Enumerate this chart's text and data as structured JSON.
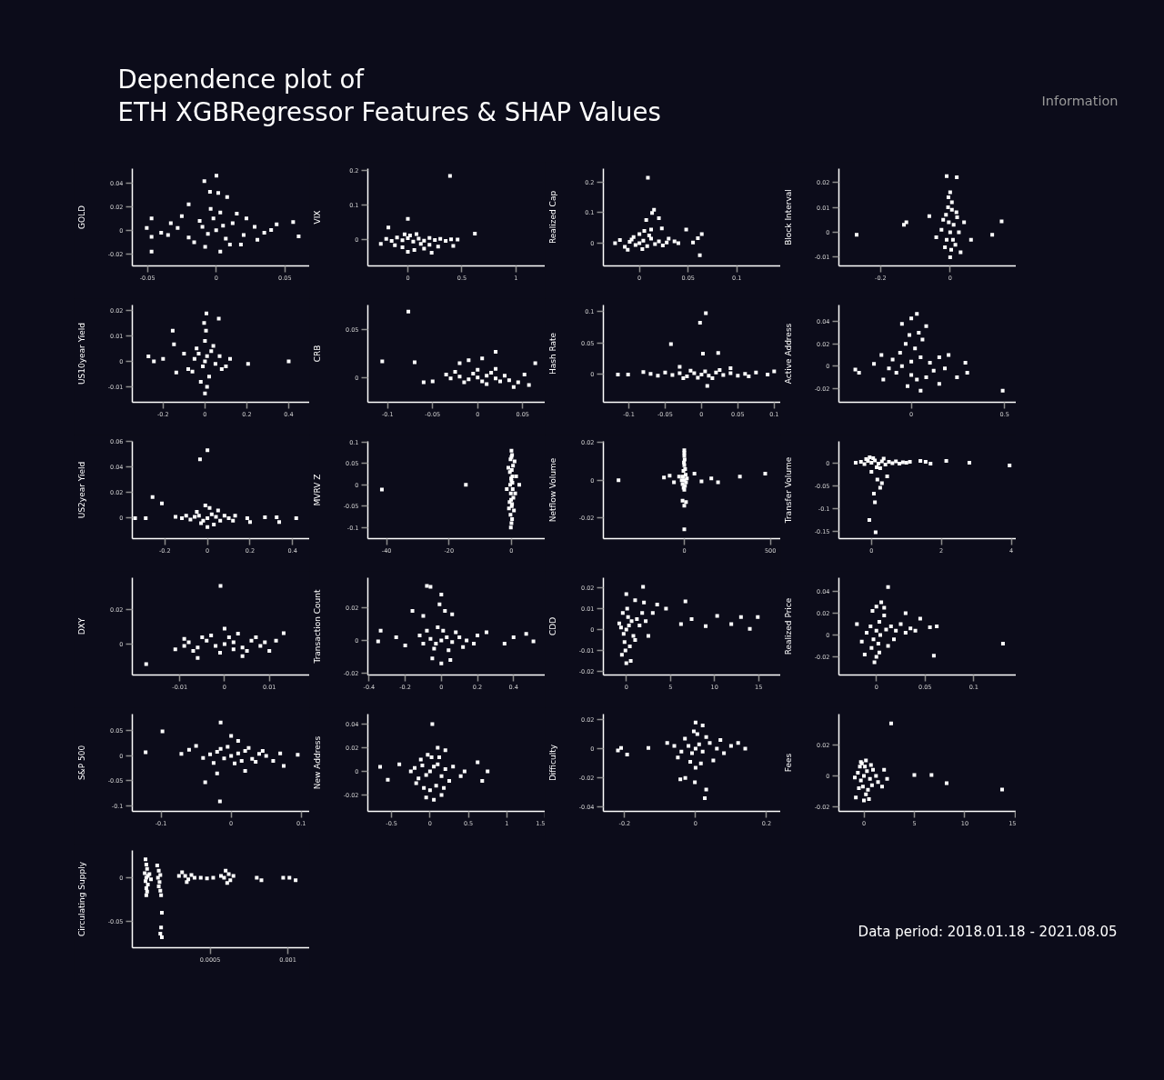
{
  "chart_data": [
    {
      "type": "other",
      "title": "Dependence plot of\nETH XGBRegressor Features & SHAP Values",
      "annotations": [
        "Information",
        "Data period: 2018.01.18 - 2021.08.05"
      ]
    },
    {
      "type": "scatter",
      "ylabel": "GOLD",
      "xlim": [
        -0.061,
        0.068
      ],
      "ylim": [
        -0.03,
        0.052
      ],
      "xticks": [
        -0.05,
        0,
        0.05
      ],
      "yticks": [
        -0.02,
        0,
        0.02,
        0.04
      ],
      "color": "#ffffff",
      "marker": "square",
      "x": [
        0.0002,
        -0.0086,
        -0.0045,
        0.0015,
        0.008,
        -0.047,
        -0.0505,
        -0.047,
        -0.047,
        0.056,
        0.06,
        0.04,
        -0.033,
        -0.02,
        0,
        0.005,
        -0.006,
        0.012,
        -0.012,
        0.02,
        -0.02,
        0.028,
        -0.028,
        0.035,
        -0.035,
        0.01,
        -0.008,
        0.003,
        -0.004,
        0.015,
        -0.016,
        0.022,
        0.003,
        0.044,
        -0.04,
        0.018,
        -0.002,
        0.007,
        -0.01,
        0.03,
        -0.025
      ],
      "values": [
        0.046,
        0.0415,
        0.0325,
        0.0315,
        0.028,
        0.01,
        0.002,
        -0.0055,
        -0.018,
        0.007,
        -0.005,
        0.0003,
        0.006,
        0.022,
        0,
        0.004,
        -0.003,
        0.006,
        0.008,
        -0.004,
        -0.006,
        0.003,
        0.002,
        -0.002,
        -0.004,
        -0.012,
        -0.014,
        0.015,
        0.018,
        0.014,
        -0.01,
        0.01,
        -0.018,
        0.005,
        -0.002,
        -0.012,
        0.01,
        -0.007,
        0.003,
        -0.008,
        0.012
      ]
    },
    {
      "type": "scatter",
      "ylabel": "VIX",
      "xlim": [
        -0.37,
        1.27
      ],
      "ylim": [
        -0.076,
        0.205
      ],
      "xticks": [
        0,
        0.5,
        1
      ],
      "yticks": [
        0,
        0.1,
        0.2
      ],
      "color": "#ffffff",
      "marker": "square",
      "x": [
        0.39,
        0,
        0.62,
        -0.25,
        -0.18,
        -0.2,
        -0.15,
        -0.1,
        -0.05,
        0,
        0.05,
        0.1,
        0.15,
        0.2,
        0.25,
        0.3,
        0.35,
        0.4,
        0.46,
        0.02,
        -0.03,
        0.08,
        0.12,
        -0.05,
        0.06,
        0.15,
        0.28,
        0.42,
        -0.12,
        0.2,
        0,
        0.22
      ],
      "values": [
        0.184,
        0.06,
        0.017,
        -0.012,
        0.035,
        0.002,
        -0.004,
        0.006,
        -0.002,
        0.004,
        -0.006,
        0.003,
        -0.003,
        0.005,
        -0.001,
        0.002,
        -0.004,
        0.001,
        0,
        0.012,
        0.015,
        0.016,
        -0.012,
        -0.022,
        -0.03,
        -0.026,
        -0.02,
        -0.018,
        -0.016,
        -0.015,
        -0.035,
        -0.038
      ]
    },
    {
      "type": "scatter",
      "ylabel": "Realized Cap",
      "xlim": [
        -0.037,
        0.145
      ],
      "ylim": [
        -0.075,
        0.245
      ],
      "xticks": [
        0,
        0.05,
        0.1
      ],
      "yticks": [
        0,
        0.1,
        0.2
      ],
      "color": "#ffffff",
      "marker": "square",
      "x": [
        0.0087,
        0.013,
        0.015,
        0.007,
        0.02,
        0.023,
        0.048,
        0.064,
        0.06,
        0.062,
        0.036,
        0.03,
        0.012,
        0.005,
        -0.02,
        -0.025,
        0.055,
        0.04,
        0,
        0.004,
        -0.004,
        0.008,
        -0.01,
        0.012,
        -0.015,
        0.016,
        0.02,
        -0.006,
        0.003,
        -0.012,
        0.024,
        0.028,
        0,
        0.01,
        -0.008
      ],
      "values": [
        0.215,
        0.099,
        0.11,
        0.076,
        0.082,
        0.048,
        0.045,
        0.03,
        0.016,
        -0.04,
        0.006,
        0.015,
        0.045,
        0.04,
        0.01,
        0,
        0.002,
        0,
        0,
        0.008,
        -0.006,
        -0.01,
        0.004,
        0.015,
        -0.012,
        -0.003,
        0.006,
        0.02,
        -0.02,
        -0.022,
        -0.008,
        0.002,
        0.03,
        0.025,
        0.012
      ]
    },
    {
      "type": "scatter",
      "ylabel": "Block Interval",
      "xlim": [
        -0.32,
        0.19
      ],
      "ylim": [
        -0.0135,
        0.0255
      ],
      "xticks": [
        -0.2,
        0
      ],
      "yticks": [
        -0.01,
        0,
        0.01,
        0.02
      ],
      "color": "#ffffff",
      "marker": "square",
      "x": [
        -0.01,
        0.019,
        0,
        -0.005,
        0.005,
        -0.269,
        -0.126,
        -0.133,
        0.148,
        0.121,
        -0.06,
        0,
        0.04,
        -0.04,
        0.06,
        0.03,
        0,
        0.01,
        -0.01,
        0.02,
        -0.02,
        0.015,
        -0.015,
        0.025,
        -0.025,
        0.005,
        -0.006,
        0.003,
        0.018,
        -0.012,
        0.008,
        -0.004
      ],
      "values": [
        0.0225,
        0.022,
        0.016,
        0.014,
        0.012,
        -0.001,
        0.004,
        0.003,
        0.0044,
        -0.001,
        0.0065,
        -0.01,
        0.004,
        -0.002,
        -0.003,
        -0.008,
        0,
        0.003,
        -0.003,
        0.006,
        0.005,
        -0.005,
        -0.006,
        0,
        0.001,
        0.009,
        0.01,
        -0.007,
        0.008,
        0.007,
        -0.003,
        0.004
      ]
    },
    {
      "type": "scatter",
      "ylabel": "US10year Yield",
      "xlim": [
        -0.347,
        0.5
      ],
      "ylim": [
        -0.016,
        0.022
      ],
      "xticks": [
        -0.2,
        0,
        0.2,
        0.4
      ],
      "yticks": [
        -0.01,
        0,
        0.01,
        0.02
      ],
      "color": "#ffffff",
      "marker": "square",
      "x": [
        -0.27,
        -0.244,
        -0.2,
        -0.154,
        -0.148,
        -0.137,
        0.206,
        0.4,
        0.066,
        0.007,
        0,
        -0.1,
        0.12,
        0.1,
        -0.08,
        0,
        0.01,
        -0.01,
        0.03,
        -0.03,
        0.05,
        -0.05,
        0.07,
        -0.06,
        0.02,
        -0.02,
        0,
        0.005,
        -0.004,
        0.01,
        0.04,
        -0.04,
        0.08
      ],
      "values": [
        0.0019,
        0,
        0.001,
        0.012,
        0.0066,
        -0.0044,
        -0.001,
        0,
        0.0167,
        0.0187,
        -0.0125,
        0.003,
        0.001,
        -0.002,
        -0.003,
        0,
        0.002,
        -0.002,
        0.004,
        0.003,
        -0.001,
        0.001,
        0.002,
        -0.004,
        -0.006,
        -0.008,
        0.008,
        0.012,
        0.015,
        -0.01,
        0.006,
        0.005,
        -0.003
      ]
    },
    {
      "type": "scatter",
      "ylabel": "CRB",
      "xlim": [
        -0.122,
        0.075
      ],
      "ylim": [
        -0.026,
        0.076
      ],
      "xticks": [
        -0.1,
        -0.05,
        0,
        0.05
      ],
      "yticks": [
        0,
        0.05
      ],
      "color": "#ffffff",
      "marker": "square",
      "x": [
        -0.077,
        -0.106,
        -0.07,
        0.052,
        0.064,
        0.057,
        -0.05,
        -0.06,
        -0.02,
        -0.01,
        0.005,
        0.02,
        0.04,
        0.045,
        0,
        0.01,
        -0.01,
        0.02,
        -0.02,
        0.03,
        -0.03,
        0.005,
        -0.005,
        0.015,
        -0.015,
        0.025,
        -0.035,
        0.035,
        0,
        -0.025,
        0.01,
        0.02
      ],
      "values": [
        0.069,
        0.017,
        0.016,
        0.003,
        0.015,
        -0.008,
        -0.004,
        -0.005,
        0.015,
        0.018,
        0.02,
        0.027,
        -0.01,
        -0.005,
        0,
        0.002,
        -0.002,
        -0.001,
        0.001,
        0.002,
        -0.001,
        -0.004,
        0.004,
        0.005,
        -0.005,
        -0.004,
        0.003,
        -0.003,
        0.008,
        0.006,
        -0.007,
        0.009
      ]
    },
    {
      "type": "scatter",
      "ylabel": "Hash Rate",
      "xlim": [
        -0.135,
        0.109
      ],
      "ylim": [
        -0.044,
        0.11
      ],
      "xticks": [
        -0.1,
        -0.05,
        0,
        0.05,
        0.1
      ],
      "yticks": [
        0,
        0.05,
        0.1
      ],
      "color": "#ffffff",
      "marker": "square",
      "x": [
        0.006,
        -0.002,
        -0.042,
        0.023,
        0.002,
        -0.115,
        -0.101,
        0.091,
        0.1,
        0.008,
        -0.08,
        0.075,
        -0.03,
        0.04,
        -0.07,
        -0.06,
        -0.05,
        -0.04,
        -0.03,
        -0.02,
        -0.01,
        0,
        0.01,
        0.02,
        0.03,
        0.04,
        0.05,
        0.06,
        0.065,
        -0.015,
        0.015,
        0.025,
        -0.025,
        0.005,
        -0.005
      ],
      "values": [
        0.097,
        0.082,
        0.048,
        0.034,
        0.033,
        0,
        0,
        0,
        0.005,
        -0.018,
        0.004,
        0.003,
        0.012,
        0.01,
        0.001,
        -0.002,
        0.003,
        -0.001,
        0.002,
        -0.003,
        0.002,
        0,
        -0.002,
        0.003,
        -0.001,
        0.002,
        -0.002,
        0.001,
        -0.003,
        0.006,
        -0.006,
        0.007,
        -0.006,
        0.005,
        -0.005
      ]
    },
    {
      "type": "scatter",
      "ylabel": "Active Address",
      "xlim": [
        -0.388,
        0.5625
      ],
      "ylim": [
        -0.0325,
        0.055
      ],
      "xticks": [
        0,
        0.5
      ],
      "yticks": [
        -0.02,
        0,
        0.02,
        0.04
      ],
      "color": "#ffffff",
      "marker": "square",
      "x": [
        0.49,
        -0.3,
        -0.28,
        0.29,
        0.3,
        0.245,
        0.03,
        0,
        -0.05,
        0.08,
        -0.2,
        0.2,
        -0.15,
        0.15,
        0.05,
        -0.02,
        0,
        0.05,
        -0.05,
        0.1,
        -0.1,
        0.12,
        -0.12,
        0.02,
        -0.03,
        0.06,
        -0.06,
        0,
        0.08,
        -0.08,
        0.03,
        0.15,
        -0.16,
        0.04,
        -0.01,
        0.18
      ],
      "values": [
        -0.022,
        -0.003,
        -0.006,
        0.003,
        -0.006,
        -0.01,
        0.047,
        0.043,
        0.038,
        0.036,
        0.002,
        0.01,
        -0.012,
        -0.016,
        -0.022,
        -0.018,
        0.004,
        0.008,
        0,
        0.003,
        0.006,
        -0.004,
        -0.002,
        0.016,
        0.02,
        0.024,
        0.012,
        -0.008,
        -0.01,
        -0.006,
        -0.012,
        0.008,
        0.01,
        0.03,
        0.028,
        -0.002
      ]
    },
    {
      "type": "scatter",
      "ylabel": "US2year Yield",
      "xlim": [
        -0.353,
        0.48
      ],
      "ylim": [
        -0.016,
        0.06
      ],
      "xticks": [
        -0.2,
        0,
        0.2,
        0.4
      ],
      "yticks": [
        0,
        0.02,
        0.04,
        0.06
      ],
      "color": "#ffffff",
      "marker": "square",
      "x": [
        0,
        -0.035,
        -0.258,
        -0.214,
        -0.34,
        -0.29,
        0.325,
        0.337,
        0.417,
        0.27,
        0.187,
        0.2,
        -0.15,
        0.13,
        0,
        0.02,
        -0.02,
        0.04,
        -0.04,
        0.06,
        -0.06,
        0.08,
        -0.08,
        0.1,
        -0.1,
        0.01,
        -0.01,
        0.03,
        -0.03,
        0,
        0.05,
        -0.05,
        0.12,
        -0.12
      ],
      "values": [
        0.053,
        0.046,
        0.0165,
        0.0115,
        0,
        0,
        0.0007,
        -0.003,
        0,
        0.0007,
        0,
        -0.003,
        0.001,
        0.002,
        0,
        0.003,
        -0.002,
        0.001,
        0.002,
        -0.002,
        0.001,
        0.002,
        -0.001,
        0,
        0.002,
        0.008,
        0.01,
        -0.005,
        -0.004,
        -0.007,
        0.006,
        0.005,
        -0.002,
        0
      ]
    },
    {
      "type": "scatter",
      "ylabel": "MVRV Z",
      "xlim": [
        -46,
        10.8
      ],
      "ylim": [
        -0.126,
        0.102
      ],
      "xticks": [
        -40,
        -20,
        0
      ],
      "yticks": [
        -0.1,
        -0.05,
        0,
        0.05,
        0.1
      ],
      "color": "#ffffff",
      "marker": "square",
      "x": [
        -41.5,
        -14.6,
        0,
        0.2,
        -0.3,
        0.5,
        -0.5,
        0.3,
        0,
        -0.4,
        0.4,
        -0.2,
        0.6,
        -0.6,
        0.1,
        0.8,
        -0.3,
        0.2,
        0,
        -0.2,
        1.5,
        2.5,
        -1.5,
        1.2,
        -1,
        1,
        0,
        -0.8,
        0.1,
        -0.1,
        0.3,
        -0.1,
        0.2
      ],
      "values": [
        -0.011,
        0,
        0.08,
        0.07,
        0.06,
        0.045,
        0.03,
        0.02,
        0.01,
        0,
        -0.01,
        -0.02,
        -0.03,
        -0.04,
        -0.05,
        -0.06,
        -0.07,
        -0.08,
        -0.09,
        -0.1,
        0.02,
        0,
        -0.01,
        -0.02,
        0.04,
        0.055,
        0.065,
        -0.055,
        0.035,
        -0.035,
        0.005,
        0.015,
        -0.045
      ]
    },
    {
      "type": "scatter",
      "ylabel": "Netflow Volume",
      "xlim": [
        -470,
        560
      ],
      "ylim": [
        -0.031,
        0.0207
      ],
      "xticks": [
        0,
        500
      ],
      "yticks": [
        -0.02,
        0,
        0.02
      ],
      "color": "#ffffff",
      "marker": "square",
      "x": [
        -382,
        0,
        -10,
        10,
        0,
        323,
        470,
        -118,
        -85,
        -60,
        59,
        157,
        196,
        100,
        -30,
        0,
        0,
        0,
        2,
        -2,
        0,
        5,
        -5,
        8,
        -8,
        0,
        10,
        -10,
        4,
        -4,
        0,
        15,
        -15
      ],
      "values": [
        0,
        -0.026,
        -0.0108,
        -0.0115,
        -0.0135,
        0.002,
        0.0035,
        0.0015,
        0.0025,
        -0.001,
        0.0035,
        0.001,
        -0.001,
        -0.0005,
        0.002,
        0.016,
        0.0145,
        0.013,
        0.011,
        0.0095,
        0.008,
        0.006,
        0.005,
        0.003,
        0.002,
        0,
        -0.001,
        -0.002,
        -0.003,
        -0.004,
        -0.005,
        0.001,
        0
      ]
    },
    {
      "type": "scatter",
      "ylabel": "Transfer Volume",
      "xlim": [
        -0.93,
        4.14
      ],
      "ylim": [
        -0.167,
        0.047
      ],
      "xticks": [
        0,
        2,
        4
      ],
      "yticks": [
        -0.15,
        -0.1,
        -0.05,
        0
      ],
      "color": "#ffffff",
      "marker": "square",
      "x": [
        3.95,
        2.8,
        2.14,
        1.4,
        1.69,
        1.55,
        -0.45,
        0.17,
        0.07,
        0.1,
        -0.06,
        0.12,
        0.3,
        0.45,
        0.25,
        0,
        -0.3,
        -0.2,
        -0.1,
        0,
        0.1,
        0.2,
        0.3,
        0.4,
        0.5,
        0.6,
        0.7,
        0.8,
        0.9,
        1,
        1.1,
        0.05,
        0.15,
        -0.05,
        0.35,
        0.25,
        -0.15
      ],
      "values": [
        -0.006,
        0,
        0.004,
        0.004,
        -0.002,
        0.002,
        0,
        -0.037,
        -0.068,
        -0.087,
        -0.126,
        -0.153,
        -0.045,
        -0.03,
        -0.055,
        -0.02,
        0.002,
        -0.003,
        0.004,
        0,
        0.005,
        -0.002,
        0.003,
        -0.004,
        0.002,
        -0.001,
        0.003,
        -0.002,
        0.001,
        0,
        0.002,
        0.01,
        -0.01,
        0.012,
        0.009,
        -0.012,
        0.008
      ]
    },
    {
      "type": "scatter",
      "ylabel": "DXY",
      "xlim": [
        -0.0206,
        0.019
      ],
      "ylim": [
        -0.0179,
        0.0384
      ],
      "xticks": [
        -0.01,
        0,
        0.01
      ],
      "yticks": [
        0,
        0.02
      ],
      "color": "#ffffff",
      "marker": "square",
      "x": [
        -0.0009,
        -0.0175,
        0.0132,
        0.0115,
        -0.011,
        -0.009,
        0.01,
        -0.006,
        0.004,
        0,
        -0.008,
        -0.006,
        -0.004,
        -0.002,
        0,
        0.002,
        0.004,
        0.006,
        0.008,
        0.009,
        -0.003,
        0.003,
        -0.001,
        0.001,
        0.005,
        -0.005,
        0.007,
        -0.007,
        0.002,
        -0.009
      ],
      "values": [
        0.0337,
        -0.0116,
        0.0063,
        0.002,
        -0.003,
        0.003,
        -0.004,
        -0.008,
        -0.007,
        0.009,
        0.001,
        -0.002,
        0.002,
        -0.001,
        0,
        0.001,
        -0.002,
        0.002,
        -0.001,
        0.001,
        0.005,
        0.006,
        -0.005,
        0.004,
        -0.004,
        0.004,
        0.004,
        -0.004,
        -0.003,
        -0.001
      ]
    },
    {
      "type": "scatter",
      "ylabel": "Transaction Count",
      "xlim": [
        -0.407,
        0.575
      ],
      "ylim": [
        -0.0211,
        0.0383
      ],
      "xticks": [
        -0.4,
        -0.2,
        0,
        0.2,
        0.4
      ],
      "yticks": [
        -0.02,
        0,
        0.02
      ],
      "color": "#ffffff",
      "marker": "square",
      "x": [
        -0.08,
        -0.06,
        0,
        -0.01,
        0.02,
        -0.1,
        -0.16,
        0.06,
        -0.35,
        -0.336,
        0.51,
        0.47,
        0.4,
        0.35,
        -0.25,
        -0.2,
        0.25,
        0,
        0.05,
        -0.05,
        0,
        0.03,
        -0.03,
        0.06,
        -0.06,
        0.1,
        -0.1,
        0.14,
        -0.12,
        0.18,
        0.01,
        -0.02,
        0.04,
        -0.04,
        0.08,
        -0.08,
        0.12,
        0.2
      ],
      "values": [
        0.0333,
        0.0328,
        0.028,
        0.022,
        0.018,
        0.015,
        0.018,
        0.016,
        -0.0005,
        0.006,
        -0.0006,
        0.004,
        0.002,
        -0.002,
        0.002,
        -0.003,
        0.005,
        -0.014,
        -0.012,
        -0.011,
        0,
        0.002,
        -0.002,
        -0.001,
        0.001,
        0.002,
        -0.002,
        0,
        0.003,
        -0.002,
        0.006,
        0.008,
        -0.006,
        -0.005,
        0.005,
        0.006,
        -0.004,
        0.003
      ]
    },
    {
      "type": "scatter",
      "ylabel": "CDD",
      "xlim": [
        -2.6,
        17.5
      ],
      "ylim": [
        -0.0217,
        0.0248
      ],
      "xticks": [
        0,
        5,
        10,
        15
      ],
      "yticks": [
        -0.02,
        -0.01,
        0,
        0.01,
        0.02
      ],
      "color": "#ffffff",
      "marker": "square",
      "x": [
        1.9,
        0,
        6.7,
        9,
        10.3,
        11.9,
        13,
        14,
        14.9,
        7.4,
        6.2,
        4.5,
        3.5,
        0,
        0.5,
        -0.5,
        2.5,
        3,
        2,
        1,
        0,
        0.3,
        -0.3,
        0.6,
        -0.6,
        0.8,
        -0.8,
        0.2,
        -0.2,
        0.4,
        -0.4,
        1.2,
        1.5,
        1.8,
        0.1,
        -0.1,
        1,
        2.2
      ],
      "values": [
        0.0204,
        0.017,
        0.0135,
        0.0017,
        0.0065,
        0.0026,
        0.006,
        0.0004,
        0.006,
        0.005,
        0.0026,
        0.01,
        0.012,
        -0.016,
        -0.015,
        -0.012,
        -0.003,
        0.008,
        0.013,
        0.014,
        0,
        0.002,
        -0.002,
        0.004,
        0.001,
        -0.003,
        0.003,
        0.006,
        -0.006,
        -0.008,
        0.008,
        0.005,
        0.002,
        0.008,
        0.01,
        -0.01,
        -0.005,
        0.004
      ]
    },
    {
      "type": "scatter",
      "ylabel": "Realized Price",
      "xlim": [
        -0.0385,
        0.1436
      ],
      "ylim": [
        -0.0367,
        0.0525
      ],
      "xticks": [
        0,
        0.05,
        0.1
      ],
      "yticks": [
        -0.02,
        0,
        0.02,
        0.04
      ],
      "color": "#ffffff",
      "marker": "square",
      "x": [
        0.13,
        0.059,
        0.062,
        0.055,
        0.012,
        0.005,
        0,
        -0.004,
        0.008,
        0.003,
        -0.006,
        0,
        0.004,
        -0.003,
        0.002,
        -0.005,
        0.003,
        0,
        -0.002,
        0.01,
        0.015,
        0.02,
        0.025,
        0.03,
        0.035,
        0.04,
        0.018,
        0.012,
        0.008,
        -0.01,
        -0.015,
        -0.02,
        -0.012,
        0.03,
        0.045
      ],
      "values": [
        -0.008,
        -0.019,
        0.008,
        0.007,
        0.044,
        0.03,
        0.026,
        0.022,
        0.018,
        0.012,
        0.008,
        0.004,
        0,
        -0.004,
        -0.008,
        -0.012,
        -0.016,
        -0.02,
        -0.025,
        0.005,
        0.008,
        0.004,
        0.01,
        0.002,
        0.006,
        0.004,
        -0.004,
        -0.01,
        0.025,
        0.002,
        -0.006,
        0.01,
        -0.018,
        0.02,
        0.015
      ]
    },
    {
      "type": "scatter",
      "ylabel": "S&P 500",
      "xlim": [
        -0.141,
        0.112
      ],
      "ylim": [
        -0.111,
        0.0836
      ],
      "xticks": [
        -0.1,
        0,
        0.1
      ],
      "yticks": [
        -0.1,
        -0.05,
        0,
        0.05
      ],
      "color": "#ffffff",
      "marker": "square",
      "x": [
        -0.098,
        -0.122,
        -0.071,
        -0.015,
        -0.016,
        -0.037,
        0.095,
        0.07,
        0.06,
        0.075,
        -0.05,
        -0.06,
        0,
        0.01,
        -0.02,
        0.02,
        0,
        0.01,
        -0.01,
        0.02,
        -0.02,
        0.03,
        -0.03,
        0.04,
        -0.04,
        0.05,
        0.005,
        -0.005,
        0.015,
        -0.015,
        0.025,
        -0.025,
        0.035,
        0.045
      ],
      "values": [
        0.049,
        0.007,
        0.004,
        0.067,
        -0.091,
        -0.053,
        0.002,
        0.005,
        -0.01,
        -0.02,
        0.02,
        0.012,
        0.04,
        0.03,
        -0.035,
        -0.03,
        0,
        0.005,
        -0.005,
        0.01,
        0.008,
        -0.006,
        0.003,
        0.004,
        -0.004,
        0,
        -0.015,
        0.018,
        -0.01,
        0.014,
        0.016,
        -0.014,
        -0.012,
        0.01
      ]
    },
    {
      "type": "scatter",
      "ylabel": "New Address",
      "xlim": [
        -0.81,
        1.5
      ],
      "ylim": [
        -0.0338,
        0.0485
      ],
      "xticks": [
        -0.5,
        0,
        0.5,
        1,
        1.5
      ],
      "yticks": [
        -0.02,
        0,
        0.02,
        0.04
      ],
      "color": "#ffffff",
      "marker": "square",
      "x": [
        0.03,
        -0.65,
        -0.55,
        0.62,
        0.75,
        0.68,
        0.45,
        0.4,
        -0.4,
        0.1,
        0.2,
        0.05,
        -0.05,
        0.15,
        0,
        0.05,
        -0.05,
        0.1,
        -0.1,
        0.15,
        -0.15,
        0.2,
        -0.2,
        0.25,
        -0.25,
        0.3,
        0.02,
        -0.03,
        0.08,
        -0.08,
        0.12,
        -0.12,
        0,
        0.18,
        -0.18
      ],
      "values": [
        0.04,
        0.0038,
        -0.007,
        0.0077,
        0,
        -0.008,
        0,
        -0.004,
        0.006,
        0.02,
        0.018,
        -0.024,
        -0.022,
        -0.02,
        0,
        0.004,
        -0.003,
        0.006,
        0.005,
        -0.004,
        -0.006,
        0.002,
        0.003,
        -0.008,
        0,
        0.004,
        0.012,
        0.014,
        -0.012,
        -0.014,
        0.012,
        0.01,
        -0.016,
        -0.014,
        -0.01
      ]
    },
    {
      "type": "scatter",
      "ylabel": "Difficulty",
      "xlim": [
        -0.26,
        0.24
      ],
      "ylim": [
        -0.043,
        0.0238
      ],
      "xticks": [
        -0.2,
        0,
        0.2
      ],
      "yticks": [
        -0.04,
        -0.02,
        0,
        0.02
      ],
      "color": "#ffffff",
      "marker": "square",
      "x": [
        -0.219,
        -0.21,
        -0.193,
        -0.133,
        -0.043,
        -0.029,
        -0.002,
        0.026,
        0.03,
        0,
        0.02,
        0.14,
        0.12,
        -0.08,
        0,
        0.01,
        -0.01,
        0.02,
        -0.02,
        0.04,
        -0.04,
        0.06,
        -0.06,
        0.08,
        0.1,
        0.005,
        -0.005,
        0.015,
        -0.015,
        0.03,
        -0.03,
        0.05,
        -0.05,
        0.07,
        0
      ],
      "values": [
        -0.0012,
        0.0006,
        -0.004,
        0.0006,
        -0.021,
        -0.02,
        -0.023,
        -0.034,
        -0.028,
        0.018,
        0.016,
        0,
        0.004,
        0.004,
        0,
        0.003,
        -0.003,
        -0.002,
        0.002,
        0.004,
        -0.002,
        0,
        0.002,
        -0.003,
        0.002,
        0.01,
        0.012,
        -0.01,
        -0.009,
        0.008,
        0.007,
        -0.008,
        -0.006,
        0.006,
        -0.013
      ]
    },
    {
      "type": "scatter",
      "ylabel": "Fees",
      "xlim": [
        -2.48,
        15.1
      ],
      "ylim": [
        -0.023,
        0.04
      ],
      "xticks": [
        0,
        5,
        10,
        15
      ],
      "yticks": [
        -0.02,
        0,
        0.02
      ],
      "color": "#ffffff",
      "marker": "square",
      "x": [
        2.7,
        13.7,
        6.7,
        8.2,
        5,
        2.3,
        2,
        1.8,
        0,
        0.5,
        -0.8,
        0.2,
        -0.3,
        0,
        0.3,
        -0.3,
        0.6,
        -0.6,
        0.9,
        -0.9,
        1.2,
        0.1,
        -0.1,
        0.4,
        -0.4,
        0.7,
        0.8,
        -0.5,
        1.4,
        0.2,
        -0.2
      ],
      "values": [
        0.034,
        -0.0088,
        0.0006,
        -0.0047,
        0.0006,
        -0.002,
        0.004,
        -0.007,
        -0.016,
        -0.015,
        -0.014,
        0.01,
        0.009,
        0,
        0.003,
        -0.003,
        -0.002,
        0.002,
        0.004,
        -0.001,
        0,
        0.006,
        -0.007,
        -0.009,
        0.006,
        0.007,
        -0.006,
        -0.008,
        -0.004,
        -0.012,
        0.008
      ]
    },
    {
      "type": "scatter",
      "ylabel": "Circulating Supply",
      "xlim": [
        0,
        0.00114
      ],
      "ylim": [
        -0.08,
        0.031
      ],
      "xticks": [
        0.0005,
        0.001
      ],
      "yticks": [
        -0.05,
        0
      ],
      "color": "#ffffff",
      "marker": "square",
      "x": [
        8.5e-05,
        9e-05,
        9.5e-05,
        8e-05,
        0.0001,
        9e-05,
        8.5e-05,
        0.0001,
        9e-05,
        9.5e-05,
        9e-05,
        0.00011,
        0.00012,
        0.00016,
        0.00017,
        0.00018,
        0.000165,
        0.000175,
        0.00017,
        0.00018,
        0.000185,
        0.00019,
        0.000185,
        0.00019,
        0.00018,
        0.0003,
        0.00032,
        0.00034,
        0.00036,
        0.00038,
        0.0004,
        0.00035,
        0.00044,
        0.00048,
        0.00052,
        0.00057,
        0.0006,
        0.00062,
        0.00059,
        0.00063,
        0.00061,
        0.00065,
        0.0008,
        0.00083,
        0.00097,
        0.00101,
        0.00105
      ],
      "values": [
        0.021,
        0.015,
        0.01,
        0.005,
        0.002,
        0,
        -0.004,
        -0.008,
        -0.012,
        -0.016,
        -0.02,
        0.004,
        -0.002,
        0.014,
        0.008,
        0.003,
        0,
        -0.005,
        -0.01,
        -0.015,
        -0.02,
        -0.04,
        -0.057,
        -0.068,
        -0.064,
        0.002,
        0.006,
        0.002,
        -0.002,
        0.003,
        0,
        -0.005,
        0,
        -0.001,
        0,
        0.002,
        0.008,
        0.004,
        0,
        -0.003,
        -0.006,
        0.002,
        0,
        -0.003,
        0,
        0,
        -0.003
      ]
    }
  ]
}
